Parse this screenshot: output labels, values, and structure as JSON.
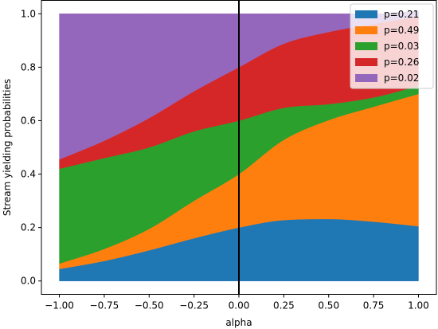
{
  "chart_data": {
    "type": "area",
    "stacked": true,
    "title": "",
    "xlabel": "alpha",
    "ylabel": "Stream yielding probabilities",
    "xlim": [
      -1.1,
      1.1
    ],
    "ylim": [
      -0.05,
      1.05
    ],
    "xticks": [
      -1.0,
      -0.75,
      -0.5,
      -0.25,
      0.0,
      0.25,
      0.5,
      0.75,
      1.0
    ],
    "xtick_labels": [
      "−1.00",
      "−0.75",
      "−0.50",
      "−0.25",
      "0.00",
      "0.25",
      "0.50",
      "0.75",
      "1.00"
    ],
    "yticks": [
      0.0,
      0.2,
      0.4,
      0.6,
      0.8,
      1.0
    ],
    "ytick_labels": [
      "0.0",
      "0.2",
      "0.4",
      "0.6",
      "0.8",
      "1.0"
    ],
    "grid": false,
    "legend_position": "top-right",
    "vline": {
      "x": 0.0,
      "color": "#000000"
    },
    "x": [
      -1.0,
      -0.75,
      -0.5,
      -0.25,
      0.0,
      0.25,
      0.5,
      0.75,
      1.0
    ],
    "series": [
      {
        "name": "p=0.21",
        "color": "#1f77b4",
        "values": [
          0.045,
          0.075,
          0.115,
          0.16,
          0.2,
          0.228,
          0.232,
          0.222,
          0.205
        ]
      },
      {
        "name": "p=0.49",
        "color": "#ff7f0e",
        "values": [
          0.02,
          0.045,
          0.08,
          0.14,
          0.2,
          0.3,
          0.37,
          0.43,
          0.495
        ]
      },
      {
        "name": "p=0.03",
        "color": "#2ca02c",
        "values": [
          0.355,
          0.34,
          0.305,
          0.26,
          0.2,
          0.12,
          0.06,
          0.035,
          0.03
        ]
      },
      {
        "name": "p=0.26",
        "color": "#d62728",
        "values": [
          0.035,
          0.065,
          0.11,
          0.15,
          0.2,
          0.24,
          0.27,
          0.275,
          0.26
        ]
      },
      {
        "name": "p=0.02",
        "color": "#9467bd",
        "values": [
          0.545,
          0.475,
          0.39,
          0.29,
          0.2,
          0.112,
          0.068,
          0.038,
          0.02
        ]
      }
    ]
  }
}
